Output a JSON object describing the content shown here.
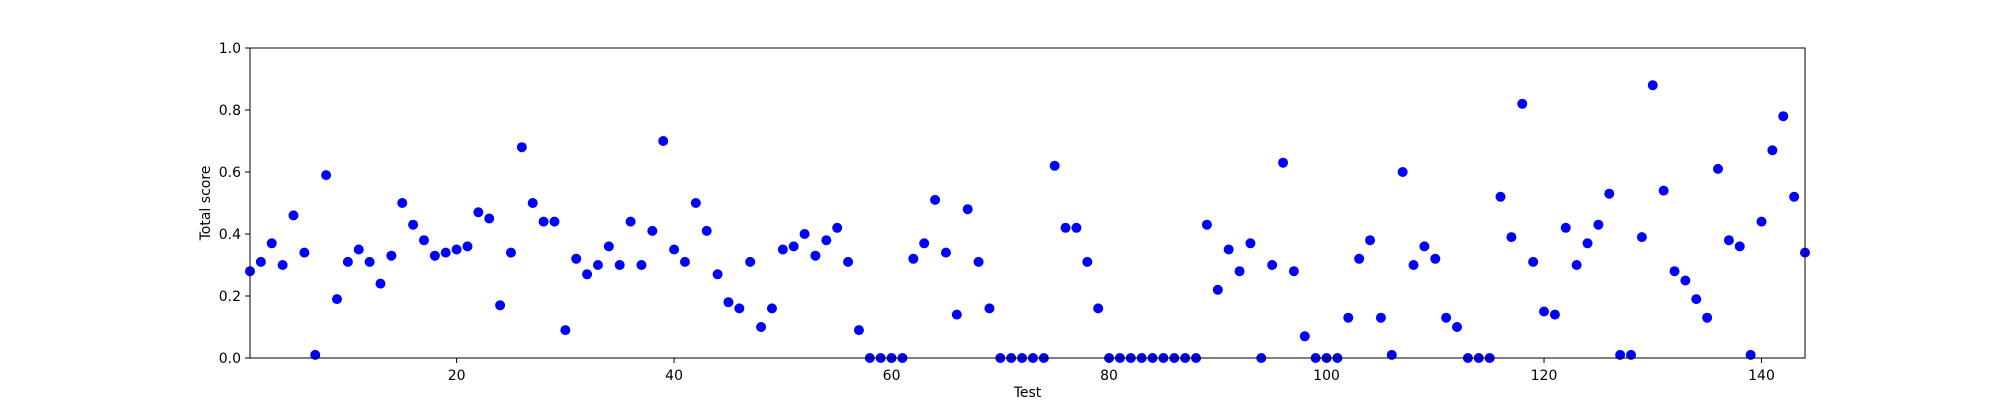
{
  "chart_data": {
    "type": "scatter",
    "xlabel": "Test",
    "ylabel": "Total score",
    "xlim": [
      1,
      144
    ],
    "ylim": [
      0,
      1
    ],
    "xticks": [
      "20",
      "40",
      "60",
      "80",
      "100",
      "120",
      "140"
    ],
    "yticks": [
      "0.0",
      "0.2",
      "0.4",
      "0.6",
      "0.8",
      "1.0"
    ],
    "grid": false,
    "legend": "none",
    "marker_color": "#0000ff",
    "x": [
      1,
      2,
      3,
      4,
      5,
      6,
      7,
      8,
      9,
      10,
      11,
      12,
      13,
      14,
      15,
      16,
      17,
      18,
      19,
      20,
      21,
      22,
      23,
      24,
      25,
      26,
      27,
      28,
      29,
      30,
      31,
      32,
      33,
      34,
      35,
      36,
      37,
      38,
      39,
      40,
      41,
      42,
      43,
      44,
      45,
      46,
      47,
      48,
      49,
      50,
      51,
      52,
      53,
      54,
      55,
      56,
      57,
      58,
      59,
      60,
      61,
      62,
      63,
      64,
      65,
      66,
      67,
      68,
      69,
      70,
      71,
      72,
      73,
      74,
      75,
      76,
      77,
      78,
      79,
      80,
      81,
      82,
      83,
      84,
      85,
      86,
      87,
      88,
      89,
      90,
      91,
      92,
      93,
      94,
      95,
      96,
      97,
      98,
      99,
      100,
      101,
      102,
      103,
      104,
      105,
      106,
      107,
      108,
      109,
      110,
      111,
      112,
      113,
      114,
      115,
      116,
      117,
      118,
      119,
      120,
      121,
      122,
      123,
      124,
      125,
      126,
      127,
      128,
      129,
      130,
      131,
      132,
      133,
      134,
      135,
      136,
      137,
      138,
      139,
      140,
      141,
      142,
      143,
      144
    ],
    "y": [
      0.28,
      0.31,
      0.37,
      0.3,
      0.46,
      0.34,
      0.01,
      0.59,
      0.19,
      0.31,
      0.35,
      0.31,
      0.24,
      0.33,
      0.5,
      0.43,
      0.38,
      0.33,
      0.34,
      0.35,
      0.36,
      0.47,
      0.45,
      0.17,
      0.34,
      0.68,
      0.5,
      0.44,
      0.44,
      0.09,
      0.32,
      0.27,
      0.3,
      0.36,
      0.3,
      0.44,
      0.3,
      0.41,
      0.7,
      0.35,
      0.31,
      0.5,
      0.41,
      0.27,
      0.18,
      0.16,
      0.31,
      0.1,
      0.16,
      0.35,
      0.36,
      0.4,
      0.33,
      0.38,
      0.42,
      0.31,
      0.09,
      0.0,
      0.0,
      0.0,
      0.0,
      0.32,
      0.37,
      0.51,
      0.34,
      0.14,
      0.48,
      0.31,
      0.16,
      0.0,
      0.0,
      0.0,
      0.0,
      0.0,
      0.62,
      0.42,
      0.42,
      0.31,
      0.16,
      0.0,
      0.0,
      0.0,
      0.0,
      0.0,
      0.0,
      0.0,
      0.0,
      0.0,
      0.43,
      0.22,
      0.35,
      0.28,
      0.37,
      0.0,
      0.3,
      0.63,
      0.28,
      0.07,
      0.0,
      0.0,
      0.0,
      0.13,
      0.32,
      0.38,
      0.13,
      0.01,
      0.6,
      0.3,
      0.36,
      0.32,
      0.13,
      0.1,
      0.0,
      0.0,
      0.0,
      0.52,
      0.39,
      0.82,
      0.31,
      0.15,
      0.14,
      0.42,
      0.3,
      0.37,
      0.43,
      0.53,
      0.01,
      0.01,
      0.39,
      0.88,
      0.54,
      0.28,
      0.25,
      0.19,
      0.13,
      0.61,
      0.38,
      0.36,
      0.01,
      0.44,
      0.67,
      0.78,
      0.52,
      0.34
    ]
  }
}
